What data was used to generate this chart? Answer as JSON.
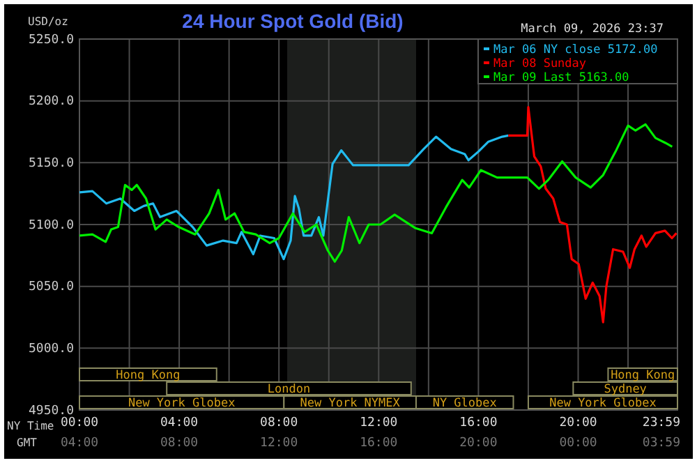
{
  "chart_data": {
    "type": "line",
    "title": "24 Hour Spot Gold (Bid)",
    "ylabel": "USD/oz",
    "xlabel": "NY Time",
    "xlim": [
      0,
      23.983
    ],
    "xticks": [
      {
        "value": 0,
        "label": "00:00"
      },
      {
        "value": 2,
        "label": null
      },
      {
        "value": 4,
        "label": "04:00"
      },
      {
        "value": 6,
        "label": null
      },
      {
        "value": 8,
        "label": "08:00"
      },
      {
        "value": 10,
        "label": null
      },
      {
        "value": 12,
        "label": "12:00"
      },
      {
        "value": 14,
        "label": null
      },
      {
        "value": 16,
        "label": "16:00"
      },
      {
        "value": 18,
        "label": null
      },
      {
        "value": 20,
        "label": "20:00"
      },
      {
        "value": 22,
        "label": null
      },
      {
        "value": 23.983,
        "label": "23:59"
      }
    ],
    "ylim": [
      4950,
      5250
    ],
    "yticks": [
      {
        "value": 4950,
        "label": "4950.0"
      },
      {
        "value": 5000,
        "label": "5000.0"
      },
      {
        "value": 5050,
        "label": "5050.0"
      },
      {
        "value": 5100,
        "label": "5100.0"
      },
      {
        "value": 5150,
        "label": "5150.0"
      },
      {
        "value": 5200,
        "label": "5200.0"
      },
      {
        "value": 5250,
        "label": "5250.0"
      }
    ],
    "grid": true,
    "legend": "top right",
    "line_style": "solid",
    "marker": "none",
    "bands": [
      {
        "axis": "x",
        "from": 8.33,
        "to": 13.5,
        "color": "#1c1e1c"
      }
    ],
    "series": [
      {
        "name": "Mar 06 NY close 5172.00",
        "color": "#22bbee",
        "x": [
          0,
          0.52,
          1.08,
          1.64,
          2.2,
          2.58,
          2.95,
          3.23,
          3.89,
          4.54,
          5.1,
          5.76,
          6.3,
          6.5,
          6.97,
          7.25,
          7.81,
          8.19,
          8.47,
          8.64,
          8.8,
          8.99,
          9.3,
          9.6,
          9.78,
          10.15,
          10.5,
          10.97,
          11.7,
          12.7,
          13.2,
          13.8,
          14.3,
          14.9,
          15.45,
          15.6,
          16,
          16.4,
          16.95,
          17.2
        ],
        "values": [
          5126,
          5127,
          5117,
          5121,
          5111,
          5115,
          5117,
          5106,
          5111,
          5098,
          5083,
          5087,
          5085,
          5094,
          5076,
          5091,
          5089,
          5072,
          5087,
          5123,
          5113,
          5091,
          5091,
          5106,
          5091,
          5149,
          5160,
          5148,
          5148,
          5148,
          5148,
          5161,
          5171,
          5161,
          5157,
          5152,
          5159,
          5167,
          5171,
          5172
        ]
      },
      {
        "name": "Mar 08 Sunday",
        "color": "#ff0000",
        "x": [
          17.2,
          17.96,
          18,
          18.15,
          18.24,
          18.5,
          18.7,
          19,
          19.27,
          19.55,
          19.74,
          20.02,
          20.3,
          20.58,
          20.86,
          21,
          21.13,
          21.4,
          21.8,
          22.07,
          22.26,
          22.54,
          22.73,
          23.1,
          23.48,
          23.76,
          23.94
        ],
        "values": [
          5172,
          5172,
          5195,
          5170,
          5155,
          5147,
          5129,
          5121,
          5102,
          5100,
          5072,
          5068,
          5040,
          5053,
          5042,
          5021,
          5050,
          5080,
          5078,
          5065,
          5080,
          5091,
          5082,
          5093,
          5095,
          5089,
          5093
        ]
      },
      {
        "name": "Mar 09 Last 5163.00",
        "color": "#00ee00",
        "x": [
          0,
          0.52,
          1.05,
          1.27,
          1.55,
          1.83,
          2.1,
          2.3,
          2.67,
          3.05,
          3.5,
          3.98,
          4.64,
          5.2,
          5.57,
          5.86,
          6.22,
          6.6,
          7.07,
          7.63,
          8,
          8.56,
          9.03,
          9.5,
          9.96,
          10.24,
          10.52,
          10.8,
          11.23,
          11.6,
          12.07,
          12.64,
          13.48,
          14.13,
          14.7,
          15.35,
          15.63,
          16.1,
          16.75,
          17.96,
          18.43,
          18.8,
          19.36,
          19.9,
          20.5,
          21,
          21.5,
          22,
          22.3,
          22.7,
          23.1,
          23.5,
          23.77
        ],
        "values": [
          5091,
          5092,
          5086,
          5096,
          5098,
          5132,
          5128,
          5132,
          5121,
          5096,
          5104,
          5098,
          5092,
          5109,
          5128,
          5104,
          5109,
          5094,
          5092,
          5085,
          5089,
          5109,
          5094,
          5100,
          5079,
          5070,
          5079,
          5106,
          5085,
          5100,
          5100,
          5108,
          5097,
          5093,
          5114,
          5136,
          5130,
          5144,
          5138,
          5138,
          5129,
          5136,
          5151,
          5138,
          5130,
          5140,
          5159,
          5180,
          5176,
          5181,
          5170,
          5166,
          5163
        ]
      }
    ],
    "annotations": [
      "March 09, 2026 23:37",
      "GMT",
      "04:00",
      "08:00",
      "12:00",
      "16:00",
      "20:00",
      "00:00",
      "03:59",
      "Hong Kong",
      "London",
      "New York Globex",
      "New York NYMEX",
      "NY Globex",
      "Hong Kong",
      "Sydney",
      "New York Globex"
    ]
  }
}
